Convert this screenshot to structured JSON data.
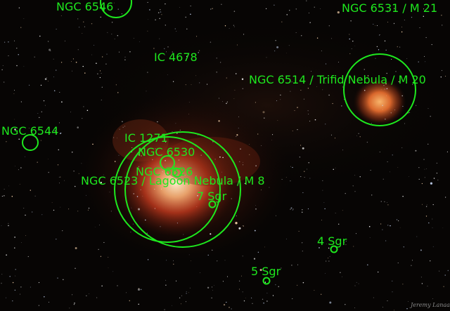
{
  "image": {
    "description_colors": {
      "annotation": "#1ee81e",
      "sky": "#060504",
      "nebula_core": "#f3d7b0",
      "nebula_red": "#b8361c"
    },
    "labels": {
      "ngc6546": "NGC 6546",
      "ngc6531": "NGC 6531 / M 21",
      "ic4678": "IC 4678",
      "trifid": "NGC 6514 / Trifid Nebula / M 20",
      "ngc6544": "NGC 6544",
      "ic1271": "IC 1271",
      "ngc6530": "NGC 6530",
      "ngc6526": "NGC 6526",
      "lagoon": "NGC 6523 / Lagoon Nebula / M 8",
      "sgr7": "7 Sgr",
      "sgr4": "4 Sgr",
      "sgr5": "5 Sgr"
    },
    "signature": "Jeremy Lanaas"
  }
}
